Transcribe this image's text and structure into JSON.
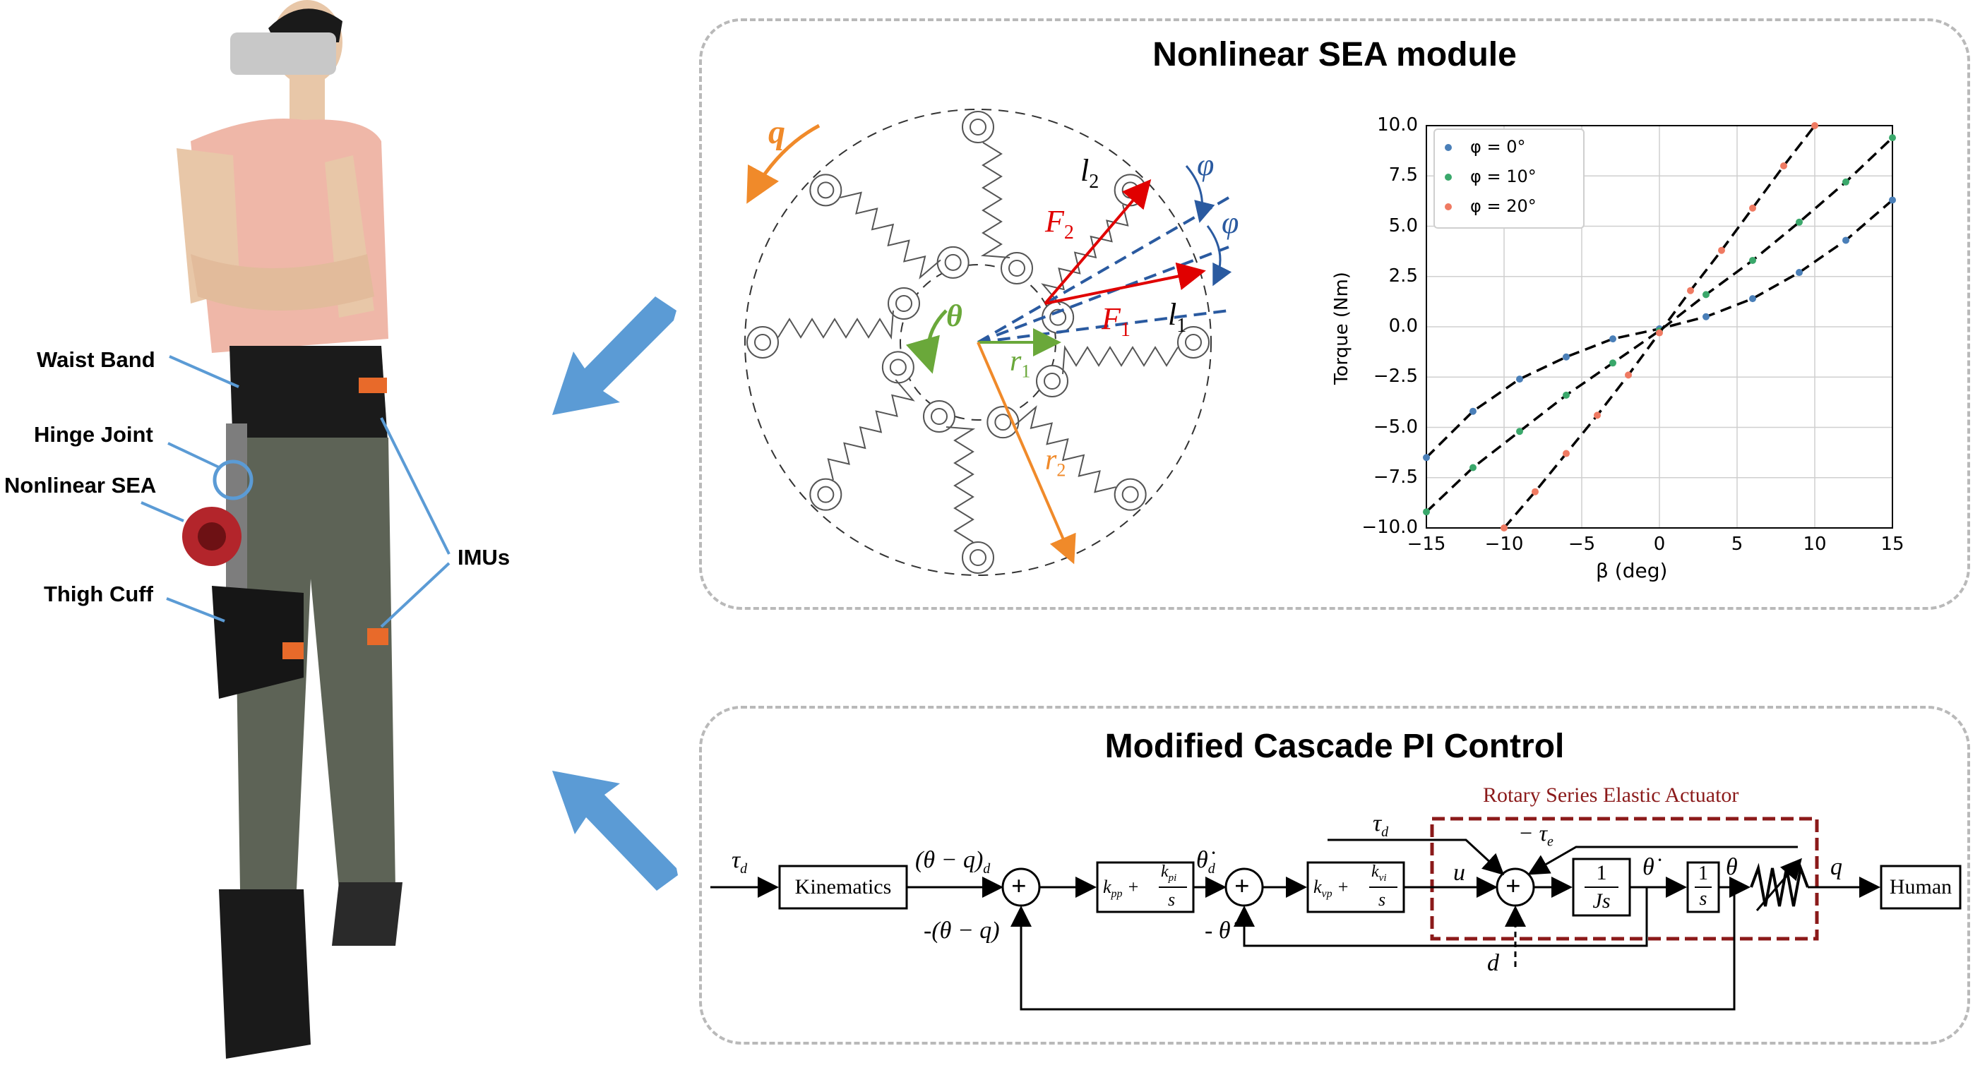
{
  "left": {
    "labels": {
      "waist_band": "Waist Band",
      "hinge_joint": "Hinge Joint",
      "nonlinear_sea": "Nonlinear SEA",
      "thigh_cuff": "Thigh Cuff",
      "imus": "IMUs"
    }
  },
  "top_panel": {
    "title": "Nonlinear SEA module",
    "diagram": {
      "q": "q",
      "theta": "θ",
      "phi": "φ",
      "l2": "l",
      "l2_sub": "2",
      "l1": "l",
      "l1_sub": "1",
      "F2": "F",
      "F2_sub": "2",
      "F1": "F",
      "F1_sub": "1",
      "r1": "r",
      "r1_sub": "1",
      "r2": "r",
      "r2_sub": "2"
    }
  },
  "chart_data": {
    "type": "scatter",
    "xlabel": "β (deg)",
    "ylabel": "Torque (Nm)",
    "xlim": [
      -15,
      15
    ],
    "ylim": [
      -10,
      10
    ],
    "xticks": [
      "−15",
      "−10",
      "−5",
      "0",
      "5",
      "10",
      "15"
    ],
    "yticks": [
      "10.0",
      "7.5",
      "5.0",
      "2.5",
      "0.0",
      "−2.5",
      "−5.0",
      "−7.5",
      "−10.0"
    ],
    "grid": true,
    "legend_position": "top-left",
    "series": [
      {
        "name": "φ = 0°",
        "color": "#4a7fb8",
        "x": [
          -15,
          -12,
          -9,
          -6,
          -3,
          0,
          3,
          6,
          9,
          12,
          15
        ],
        "y": [
          -6.5,
          -4.2,
          -2.6,
          -1.5,
          -0.6,
          -0.1,
          0.5,
          1.4,
          2.7,
          4.3,
          6.3
        ]
      },
      {
        "name": "φ = 10°",
        "color": "#3aa86b",
        "x": [
          -15,
          -12,
          -9,
          -6,
          -3,
          0,
          3,
          6,
          9,
          12,
          15
        ],
        "y": [
          -9.2,
          -7.0,
          -5.2,
          -3.4,
          -1.8,
          -0.2,
          1.6,
          3.3,
          5.2,
          7.2,
          9.4
        ]
      },
      {
        "name": "φ = 20°",
        "color": "#ef7a62",
        "x": [
          -10,
          -8,
          -6,
          -4,
          -2,
          0,
          2,
          4,
          6,
          8,
          10
        ],
        "y": [
          -10,
          -8.2,
          -6.3,
          -4.4,
          -2.4,
          -0.3,
          1.8,
          3.8,
          5.9,
          8.0,
          10
        ]
      }
    ]
  },
  "bottom_panel": {
    "title": "Modified Cascade PI Control",
    "block": {
      "rsea_label": "Rotary Series Elastic Actuator",
      "kinematics": "Kinematics",
      "human": "Human",
      "tau_d": "τ",
      "tau_d_sub": "d",
      "theta_q_d": "(θ − q)",
      "theta_q_d_sub": "d",
      "neg_theta_q": "-(θ − q)",
      "k_pp": "k",
      "k_pp_sub": "pp",
      "k_pi": "k",
      "k_pi_sub": "pi",
      "s": "s",
      "theta_dot_d": "θ̇",
      "theta_dot_d_sub": "d",
      "neg_theta_dot": "- θ̇",
      "k_vp": "k",
      "k_vp_sub": "vp",
      "k_vi": "k",
      "k_vi_sub": "vi",
      "u": "u",
      "neg_tau_e": "− τ",
      "neg_tau_e_sub": "e",
      "tau_d2": "τ",
      "tau_d2_sub": "d",
      "d": "d",
      "one": "1",
      "Js": "Js",
      "theta_dot": "θ̇",
      "theta": "θ",
      "q": "q",
      "plus": "+"
    }
  },
  "colors": {
    "arrow_blue": "#5b9bd5",
    "panel_border": "#b9b9b9",
    "rsea_red": "#8b1a1a",
    "force_red": "#e00000",
    "q_orange": "#f08a2a",
    "theta_green": "#6aa83a",
    "phi_blue": "#2a5aa0"
  }
}
